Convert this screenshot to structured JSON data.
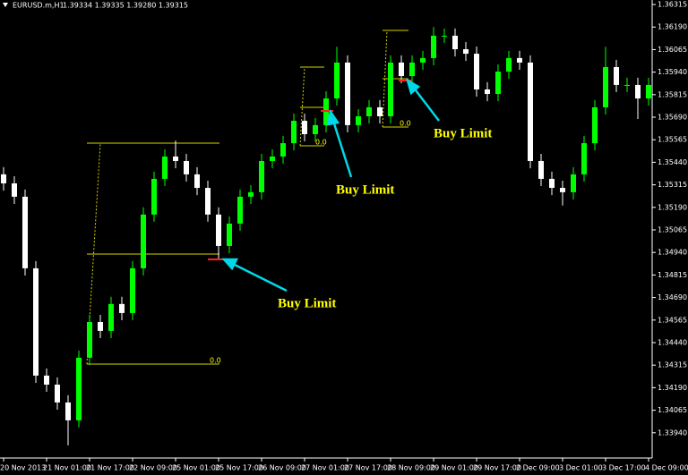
{
  "chart_data": {
    "type": "candlestick",
    "title": "EURUSD.m,H1",
    "header_quote": "1.39334 1.39335 1.39280 1.39315",
    "bull_color": "#00ff00",
    "bear_color": "#ffffff",
    "ylim": [
      1.338,
      1.3634
    ],
    "yticks": [
      1.36315,
      {
        "value": 1.3619,
        "label": "1.36190"
      },
      1.36065,
      {
        "value": 1.3594,
        "label": "1.35940"
      },
      1.35815,
      {
        "value": 1.3569,
        "label": "1.35690"
      },
      1.35565,
      {
        "value": 1.3544,
        "label": "1.35440"
      },
      1.35315,
      {
        "value": 1.3519,
        "label": "1.35190"
      },
      1.35065,
      {
        "value": 1.3494,
        "label": "1.34940"
      },
      1.34815,
      {
        "value": 1.3469,
        "label": "1.34690"
      },
      1.34565,
      {
        "value": 1.3444,
        "label": "1.34440"
      },
      1.34315,
      {
        "value": 1.3419,
        "label": "1.34190"
      },
      1.34065,
      {
        "value": 1.3394,
        "label": "1.33940"
      }
    ],
    "categories": [
      "20 Nov 2013",
      null,
      null,
      null,
      "21 Nov 01:00",
      null,
      null,
      null,
      "21 Nov 17:00",
      null,
      null,
      null,
      "22 Nov 09:00",
      null,
      null,
      null,
      "25 Nov 01:00",
      null,
      null,
      null,
      "25 Nov 17:00",
      null,
      null,
      null,
      "26 Nov 09:00",
      null,
      null,
      null,
      "27 Nov 01:00",
      null,
      null,
      null,
      "27 Nov 17:00",
      null,
      null,
      null,
      "28 Nov 09:00",
      null,
      null,
      null,
      "29 Nov 01:00",
      null,
      null,
      null,
      "29 Nov 17:00",
      null,
      null,
      null,
      "2 Dec 09:00",
      null,
      null,
      null,
      "3 Dec 01:00",
      null,
      null,
      null,
      "3 Dec 17:00",
      null,
      null,
      null,
      "4 Dec 09:00"
    ],
    "open": [
      1.35373,
      1.35323,
      1.35249,
      1.34852,
      1.34257,
      1.34207,
      1.34108,
      1.34009,
      1.34356,
      1.34554,
      1.34505,
      1.34654,
      1.34604,
      1.34852,
      1.3515,
      1.35348,
      1.35472,
      1.35447,
      1.35373,
      1.35298,
      1.3515,
      1.34976,
      1.351,
      1.35249,
      1.35274,
      1.35447,
      1.35472,
      1.35546,
      1.3567,
      1.35596,
      1.35646,
      1.35794,
      1.35993,
      1.35646,
      1.35695,
      1.35745,
      1.35695,
      1.35993,
      1.35918,
      1.35993,
      1.36018,
      1.36142,
      1.36142,
      1.36067,
      1.36042,
      1.35844,
      1.35819,
      1.35943,
      1.36018,
      1.35993,
      1.35447,
      1.35348,
      1.35298,
      1.35274,
      1.35373,
      1.35546,
      1.35745,
      1.35968,
      1.35869,
      1.35869,
      1.35794
    ],
    "high": [
      1.35413,
      1.35363,
      1.35289,
      1.34892,
      1.34297,
      1.34247,
      1.34148,
      1.34396,
      1.34594,
      1.34594,
      1.34694,
      1.34694,
      1.34892,
      1.3519,
      1.35388,
      1.35512,
      1.3556,
      1.35487,
      1.35413,
      1.35338,
      1.3519,
      1.3514,
      1.35289,
      1.35314,
      1.35487,
      1.35512,
      1.35586,
      1.3571,
      1.3571,
      1.35686,
      1.35834,
      1.3608,
      1.36033,
      1.35735,
      1.35785,
      1.35785,
      1.36033,
      1.36033,
      1.36033,
      1.36058,
      1.3619,
      1.36182,
      1.36182,
      1.36107,
      1.36082,
      1.35884,
      1.35983,
      1.36058,
      1.36058,
      1.36033,
      1.35487,
      1.35388,
      1.35338,
      1.35413,
      1.35586,
      1.35785,
      1.3608,
      1.36008,
      1.35909,
      1.35909,
      1.35909
    ],
    "low": [
      1.35283,
      1.35209,
      1.34812,
      1.34217,
      1.34167,
      1.34068,
      1.3387,
      1.33969,
      1.34316,
      1.34465,
      1.34465,
      1.34564,
      1.34564,
      1.34812,
      1.3511,
      1.35308,
      1.35407,
      1.35333,
      1.35258,
      1.3511,
      1.349,
      1.34936,
      1.3506,
      1.35209,
      1.35234,
      1.35407,
      1.35432,
      1.35506,
      1.35556,
      1.35556,
      1.35606,
      1.35754,
      1.35606,
      1.35606,
      1.35655,
      1.35655,
      1.35655,
      1.35878,
      1.35878,
      1.35953,
      1.35978,
      1.36102,
      1.36027,
      1.36002,
      1.35804,
      1.35779,
      1.35779,
      1.35903,
      1.35953,
      1.35407,
      1.35308,
      1.35258,
      1.352,
      1.35234,
      1.35333,
      1.35506,
      1.35705,
      1.35829,
      1.35829,
      1.3568,
      1.35754
    ],
    "close": [
      1.35323,
      1.35249,
      1.34852,
      1.34257,
      1.34207,
      1.34108,
      1.34009,
      1.34356,
      1.34554,
      1.34505,
      1.34654,
      1.34604,
      1.34852,
      1.3515,
      1.35348,
      1.35472,
      1.35447,
      1.35373,
      1.35298,
      1.3515,
      1.34976,
      1.351,
      1.35249,
      1.35274,
      1.35447,
      1.35472,
      1.35546,
      1.3567,
      1.35596,
      1.35646,
      1.35794,
      1.35993,
      1.35646,
      1.35695,
      1.35745,
      1.35695,
      1.35993,
      1.35918,
      1.35993,
      1.36018,
      1.36142,
      1.36142,
      1.36067,
      1.36042,
      1.35844,
      1.35819,
      1.35943,
      1.36018,
      1.35993,
      1.35447,
      1.35348,
      1.35298,
      1.35274,
      1.35373,
      1.35546,
      1.35745,
      1.35968,
      1.35869,
      1.35869,
      1.35794,
      1.35869
    ],
    "annotations": [
      "Buy Limit",
      "Buy Limit",
      "Buy Limit"
    ],
    "fib_labels": [
      "0.0",
      "0.0",
      "0.0"
    ]
  }
}
